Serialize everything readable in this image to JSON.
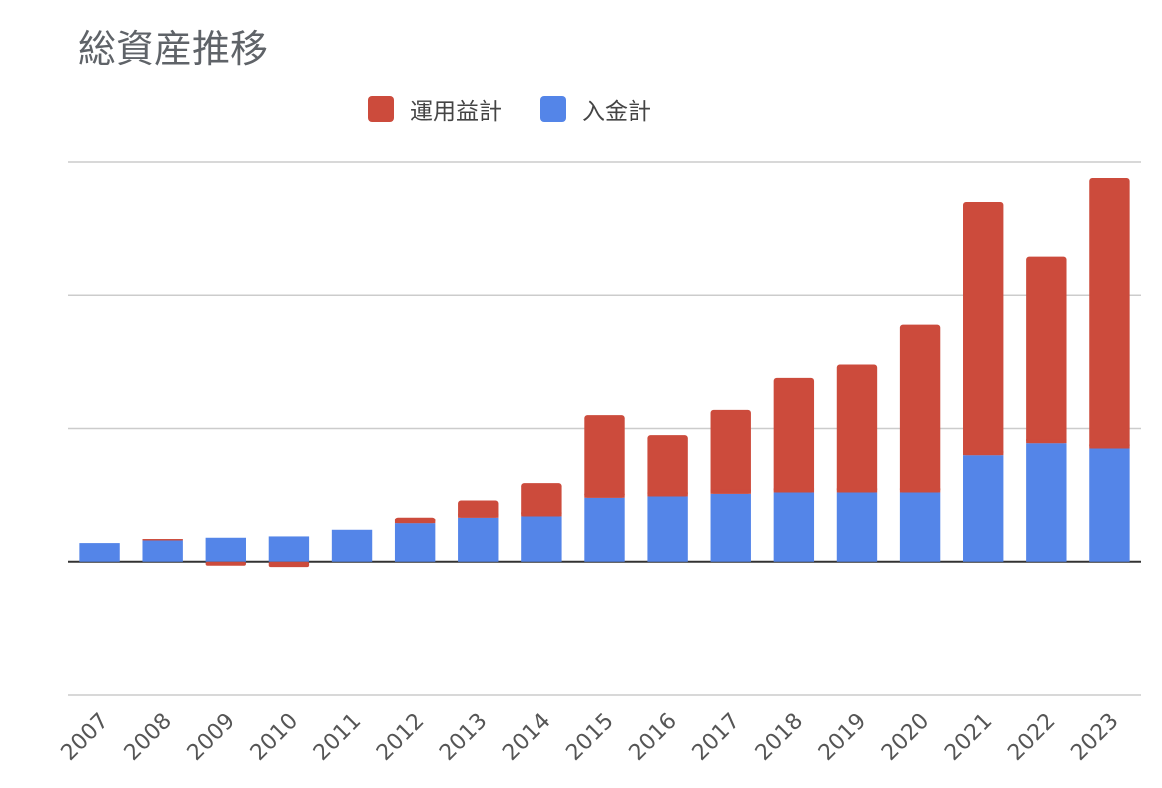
{
  "chart_data": {
    "type": "bar",
    "stacked": true,
    "title": "総資産推移",
    "categories": [
      "2007",
      "2008",
      "2009",
      "2010",
      "2011",
      "2012",
      "2013",
      "2014",
      "2015",
      "2016",
      "2017",
      "2018",
      "2019",
      "2020",
      "2021",
      "2022",
      "2023"
    ],
    "series": [
      {
        "name": "入金計",
        "color": "#5485e8",
        "values": [
          0.14,
          0.16,
          0.18,
          0.19,
          0.24,
          0.29,
          0.33,
          0.34,
          0.48,
          0.49,
          0.51,
          0.52,
          0.52,
          0.52,
          0.8,
          0.89,
          0.85
        ]
      },
      {
        "name": "運用益計",
        "color": "#cc4b3c",
        "values": [
          0.0,
          0.01,
          -0.03,
          -0.04,
          0.0,
          0.04,
          0.13,
          0.25,
          0.62,
          0.46,
          0.63,
          0.86,
          0.96,
          1.26,
          1.9,
          1.4,
          2.03
        ]
      }
    ],
    "ylim": [
      -1,
      3
    ],
    "y_gridlines": [
      -1,
      0,
      1,
      2,
      3
    ],
    "y_tick_labels_shown": false,
    "legend_position": "top",
    "grid": true
  }
}
